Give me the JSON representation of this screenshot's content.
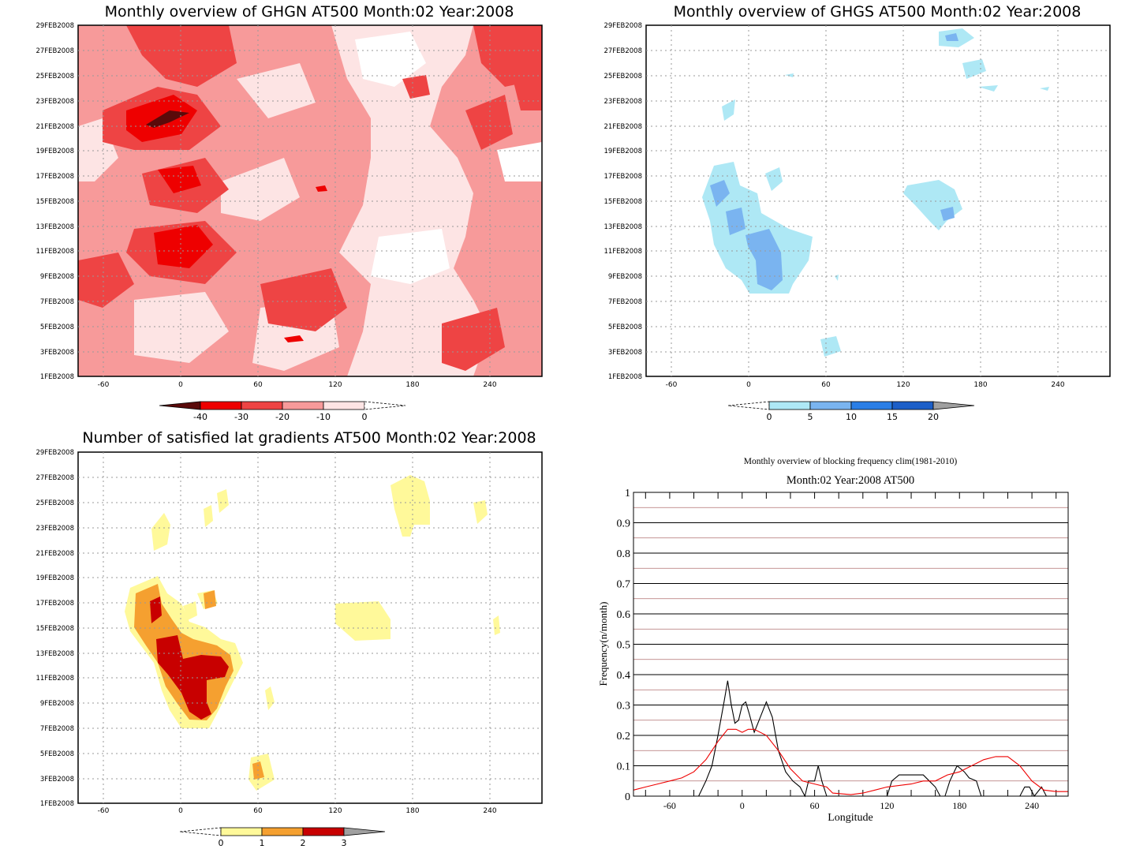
{
  "panels": {
    "ghgn": {
      "title": "Monthly overview of GHGN AT500 Month:02 Year:2008",
      "x_ticks": [
        "-60",
        "0",
        "60",
        "120",
        "180",
        "240"
      ],
      "y_ticks": [
        "1FEB2008",
        "3FEB2008",
        "5FEB2008",
        "7FEB2008",
        "9FEB2008",
        "11FEB2008",
        "13FEB2008",
        "15FEB2008",
        "17FEB2008",
        "19FEB2008",
        "21FEB2008",
        "23FEB2008",
        "25FEB2008",
        "27FEB2008",
        "29FEB2008"
      ],
      "colorbar": {
        "labels": [
          "-40",
          "-30",
          "-20",
          "-10",
          "0"
        ],
        "colors": [
          "#5a0a0a",
          "#ee0000",
          "#ee4444",
          "#f79a9a",
          "#fde4e4",
          "#ffffff"
        ]
      }
    },
    "ghgs": {
      "title": "Monthly overview of GHGS AT500 Month:02 Year:2008",
      "x_ticks": [
        "-60",
        "0",
        "60",
        "120",
        "180",
        "240"
      ],
      "y_ticks": [
        "1FEB2008",
        "3FEB2008",
        "5FEB2008",
        "7FEB2008",
        "9FEB2008",
        "11FEB2008",
        "13FEB2008",
        "15FEB2008",
        "17FEB2008",
        "19FEB2008",
        "21FEB2008",
        "23FEB2008",
        "25FEB2008",
        "27FEB2008",
        "29FEB2008"
      ],
      "colorbar": {
        "labels": [
          "0",
          "5",
          "10",
          "15",
          "20"
        ],
        "colors": [
          "#ffffff",
          "#aee8f5",
          "#7ab4f0",
          "#2a7ee6",
          "#1c5fc8",
          "#a0a0a0"
        ]
      }
    },
    "lat": {
      "title": "Number of satisfied lat gradients AT500 Month:02 Year:2008",
      "x_ticks": [
        "-60",
        "0",
        "60",
        "120",
        "180",
        "240"
      ],
      "y_ticks": [
        "1FEB2008",
        "3FEB2008",
        "5FEB2008",
        "7FEB2008",
        "9FEB2008",
        "11FEB2008",
        "13FEB2008",
        "15FEB2008",
        "17FEB2008",
        "19FEB2008",
        "21FEB2008",
        "23FEB2008",
        "25FEB2008",
        "27FEB2008",
        "29FEB2008"
      ],
      "colorbar": {
        "labels": [
          "0",
          "1",
          "2",
          "3"
        ],
        "colors": [
          "#ffffff",
          "#fff99a",
          "#f5a030",
          "#c80000",
          "#a0a0a0"
        ]
      }
    }
  },
  "chart_data": {
    "type": "line",
    "title": "Monthly overview of blocking frequency clim(1981-2010)",
    "subtitle": "Month:02 Year:2008  AT500",
    "xlabel": "Longitude",
    "ylabel": "Frequency(n/month)",
    "xlim": [
      -90,
      270
    ],
    "ylim": [
      0,
      1
    ],
    "x_tick_labels": [
      "-60",
      "0",
      "60",
      "120",
      "180",
      "240"
    ],
    "y_tick_labels": [
      "0",
      "0.1",
      "0.2",
      "0.3",
      "0.4",
      "0.5",
      "0.6",
      "0.7",
      "0.8",
      "0.9",
      "1"
    ],
    "grid": true,
    "series": [
      {
        "color": "#000000",
        "points": [
          [
            -90,
            0
          ],
          [
            -36,
            0
          ],
          [
            -30,
            0.05
          ],
          [
            -25,
            0.1
          ],
          [
            -20,
            0.2
          ],
          [
            -15,
            0.31
          ],
          [
            -12,
            0.38
          ],
          [
            -9,
            0.3
          ],
          [
            -6,
            0.24
          ],
          [
            -3,
            0.25
          ],
          [
            0,
            0.3
          ],
          [
            3,
            0.31
          ],
          [
            6,
            0.27
          ],
          [
            10,
            0.21
          ],
          [
            14,
            0.25
          ],
          [
            20,
            0.31
          ],
          [
            25,
            0.26
          ],
          [
            30,
            0.15
          ],
          [
            36,
            0.08
          ],
          [
            42,
            0.05
          ],
          [
            48,
            0.03
          ],
          [
            52,
            0.0
          ],
          [
            55,
            0.05
          ],
          [
            60,
            0.05
          ],
          [
            63,
            0.1
          ],
          [
            66,
            0.05
          ],
          [
            70,
            0.0
          ],
          [
            120,
            0
          ],
          [
            124,
            0.05
          ],
          [
            130,
            0.07
          ],
          [
            150,
            0.07
          ],
          [
            155,
            0.05
          ],
          [
            160,
            0.03
          ],
          [
            164,
            0.0
          ],
          [
            168,
            0.0
          ],
          [
            172,
            0.05
          ],
          [
            178,
            0.1
          ],
          [
            184,
            0.08
          ],
          [
            188,
            0.06
          ],
          [
            194,
            0.05
          ],
          [
            198,
            0.0
          ],
          [
            230,
            0.0
          ],
          [
            234,
            0.03
          ],
          [
            238,
            0.03
          ],
          [
            242,
            0.0
          ],
          [
            248,
            0.03
          ],
          [
            252,
            0.0
          ],
          [
            270,
            0
          ]
        ]
      },
      {
        "color": "#ee0000",
        "points": [
          [
            -90,
            0.02
          ],
          [
            -80,
            0.03
          ],
          [
            -70,
            0.04
          ],
          [
            -60,
            0.05
          ],
          [
            -50,
            0.06
          ],
          [
            -40,
            0.08
          ],
          [
            -30,
            0.12
          ],
          [
            -20,
            0.18
          ],
          [
            -12,
            0.22
          ],
          [
            -5,
            0.22
          ],
          [
            0,
            0.21
          ],
          [
            5,
            0.22
          ],
          [
            10,
            0.22
          ],
          [
            20,
            0.2
          ],
          [
            30,
            0.15
          ],
          [
            40,
            0.09
          ],
          [
            50,
            0.05
          ],
          [
            60,
            0.04
          ],
          [
            70,
            0.03
          ],
          [
            75,
            0.01
          ],
          [
            90,
            0.005
          ],
          [
            100,
            0.01
          ],
          [
            110,
            0.02
          ],
          [
            120,
            0.03
          ],
          [
            140,
            0.04
          ],
          [
            150,
            0.05
          ],
          [
            160,
            0.05
          ],
          [
            170,
            0.07
          ],
          [
            180,
            0.08
          ],
          [
            190,
            0.1
          ],
          [
            200,
            0.12
          ],
          [
            210,
            0.13
          ],
          [
            220,
            0.13
          ],
          [
            230,
            0.1
          ],
          [
            240,
            0.05
          ],
          [
            250,
            0.02
          ],
          [
            260,
            0.015
          ],
          [
            270,
            0.015
          ]
        ]
      }
    ]
  }
}
